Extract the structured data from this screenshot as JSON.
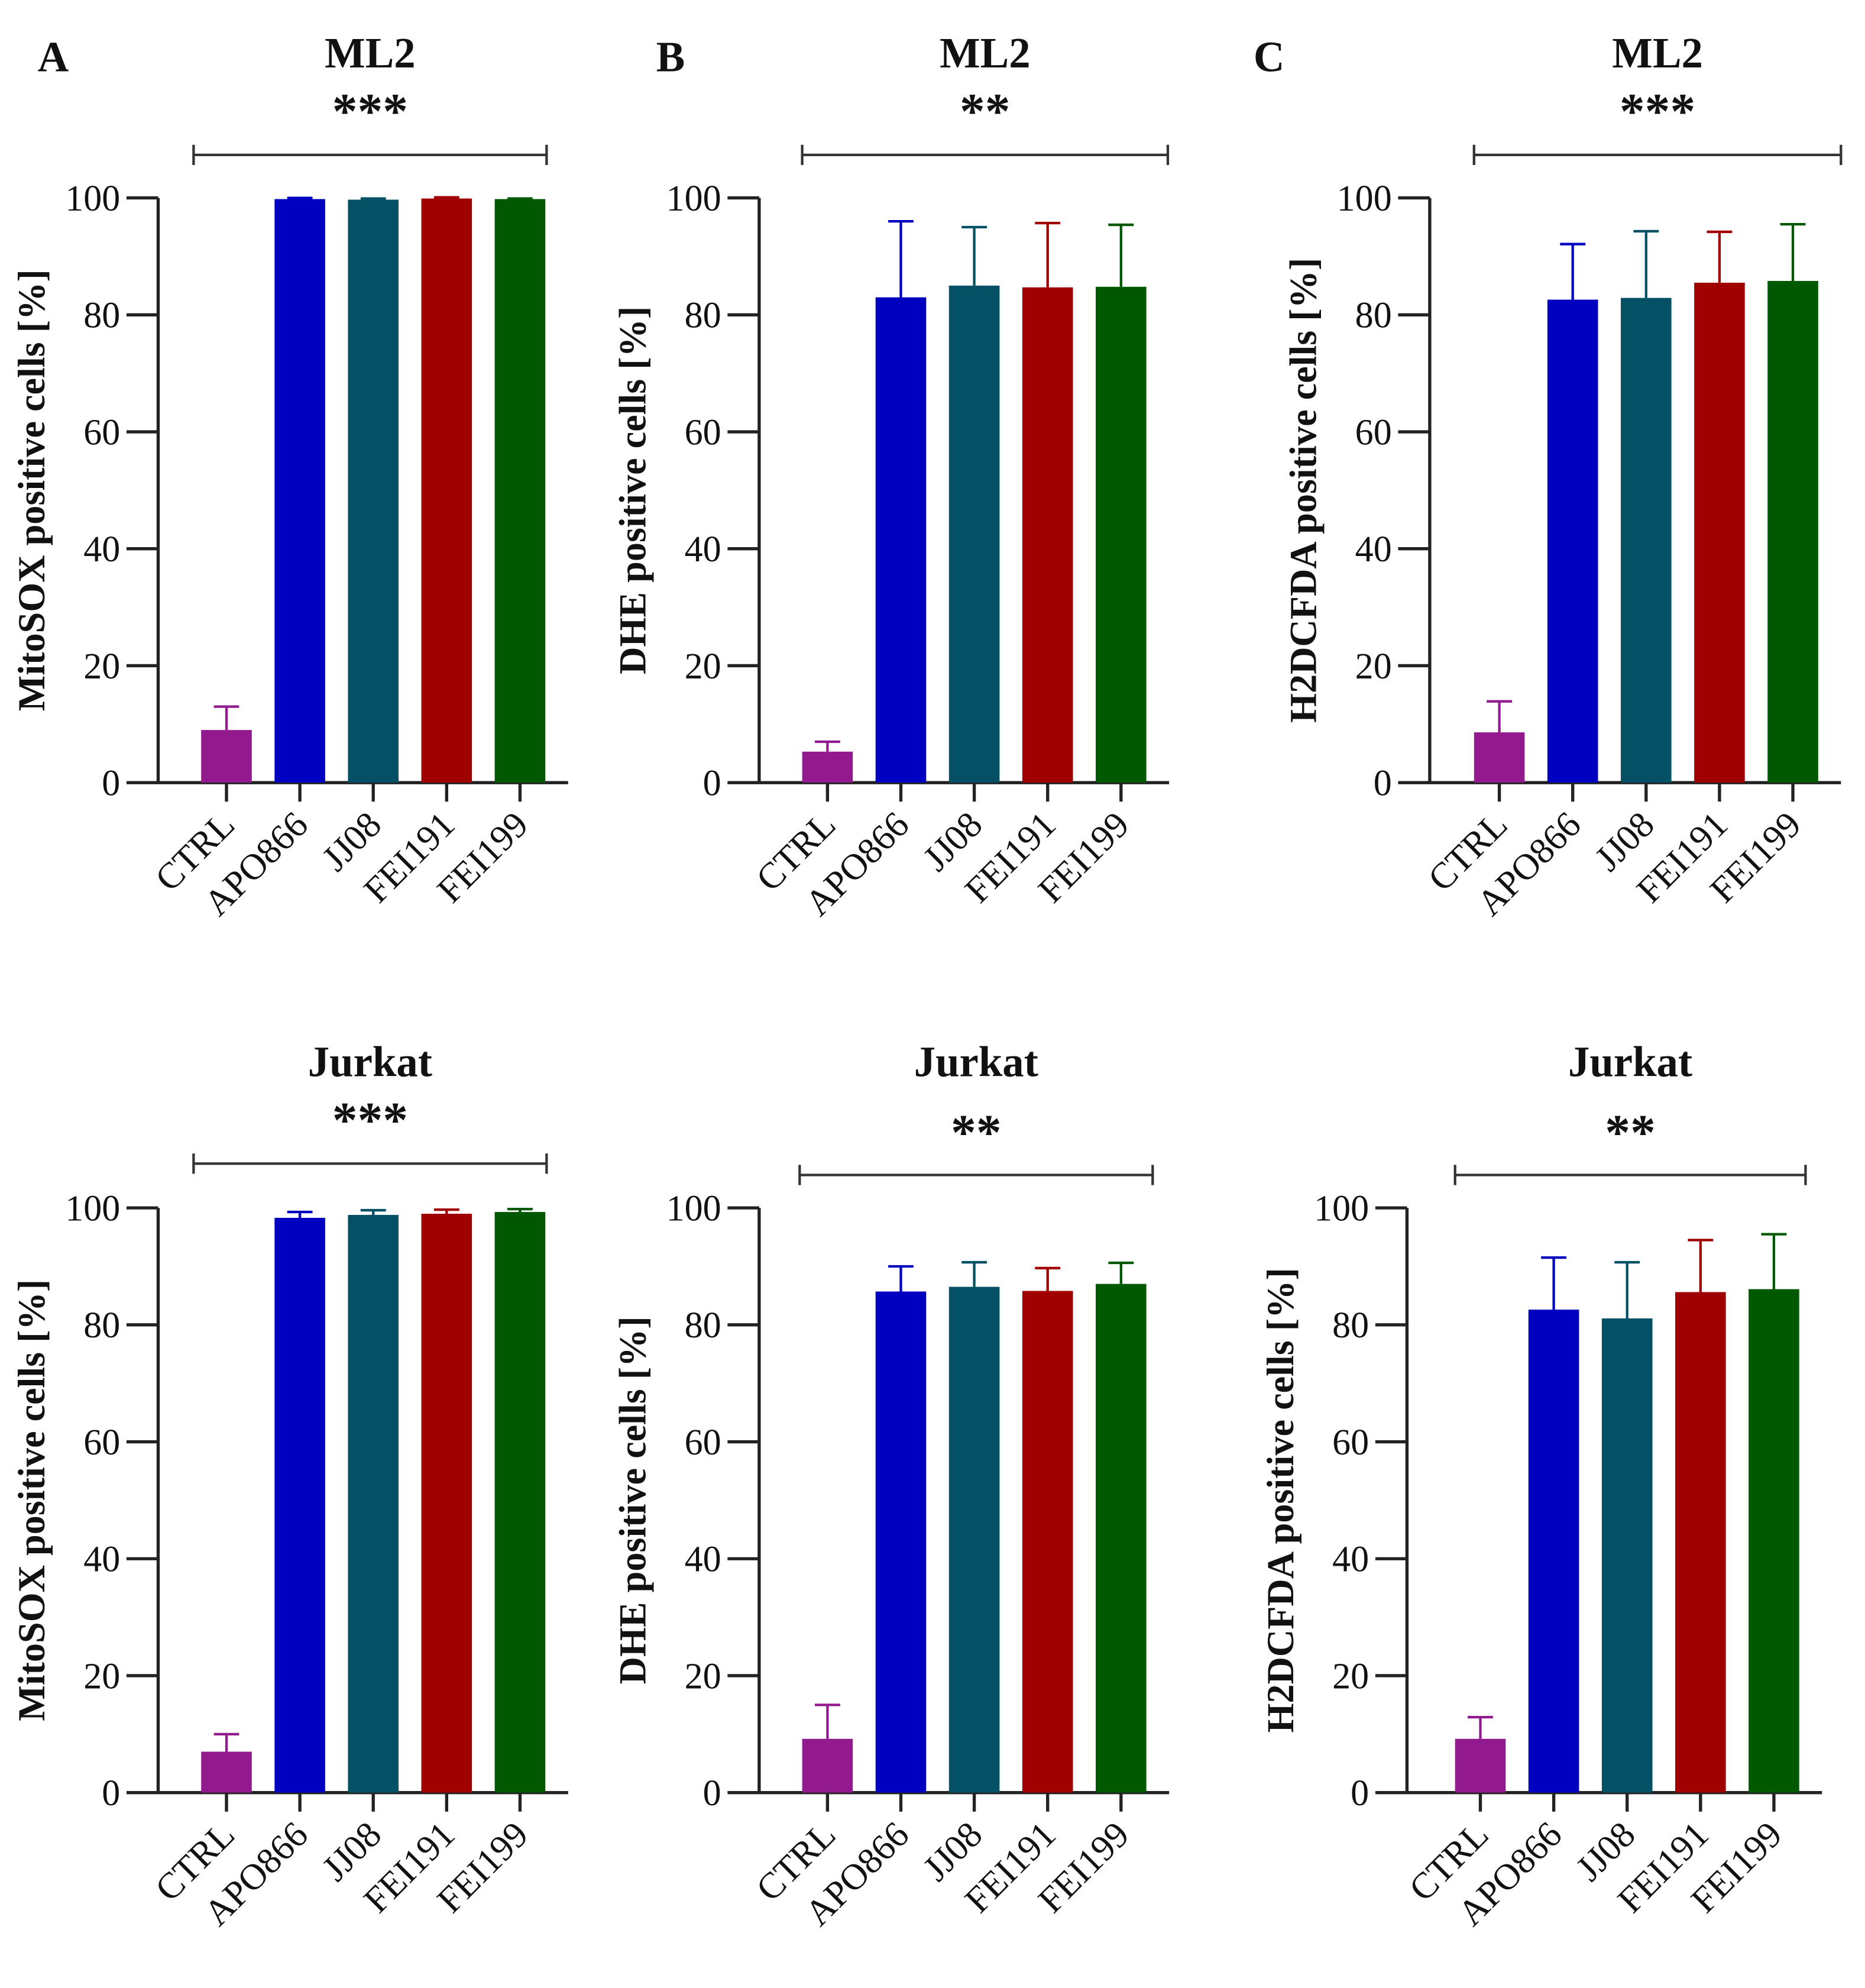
{
  "chart_data": [
    {
      "type": "bar",
      "panel": "A",
      "title": "ML2",
      "significance": "***",
      "ylabel": "MitoSOX positive cells [%]",
      "ylim": [
        0,
        100
      ],
      "yticks": [
        "0",
        "20",
        "40",
        "60",
        "80",
        "100"
      ],
      "categories": [
        "CTRL",
        "APO866",
        "JJ08",
        "FEI191",
        "FEI199"
      ],
      "values": [
        9,
        99.8,
        99.7,
        99.9,
        99.8
      ],
      "errors": [
        4,
        0.2,
        0.2,
        0.2,
        0.1
      ]
    },
    {
      "type": "bar",
      "panel": "B",
      "title": "ML2",
      "significance": "**",
      "ylabel": "DHE positive cells [%]",
      "ylim": [
        0,
        100
      ],
      "yticks": [
        "0",
        "20",
        "40",
        "60",
        "80",
        "100"
      ],
      "categories": [
        "CTRL",
        "APO866",
        "JJ08",
        "FEI191",
        "FEI199"
      ],
      "values": [
        5.3,
        83,
        85,
        84.7,
        84.8
      ],
      "errors": [
        1.7,
        13,
        10,
        11,
        10.6
      ]
    },
    {
      "type": "bar",
      "panel": "C",
      "title": "ML2",
      "significance": "***",
      "ylabel": "H2DCFDA positive cells [%]",
      "ylim": [
        0,
        100
      ],
      "yticks": [
        "0",
        "20",
        "40",
        "60",
        "80",
        "100"
      ],
      "categories": [
        "CTRL",
        "APO866",
        "JJ08",
        "FEI191",
        "FEI199"
      ],
      "values": [
        8.6,
        82.6,
        82.9,
        85.5,
        85.8
      ],
      "errors": [
        5.3,
        9.5,
        11.4,
        8.7,
        9.7
      ]
    },
    {
      "type": "bar",
      "panel": "",
      "title": "Jurkat",
      "significance": "***",
      "ylabel": "MitoSOX positive cells [%]",
      "ylim": [
        0,
        100
      ],
      "yticks": [
        "0",
        "20",
        "40",
        "60",
        "80",
        "100"
      ],
      "categories": [
        "CTRL",
        "APO866",
        "JJ08",
        "FEI191",
        "FEI199"
      ],
      "values": [
        7,
        98.3,
        98.8,
        99,
        99.3
      ],
      "errors": [
        3,
        1,
        0.8,
        0.7,
        0.5
      ]
    },
    {
      "type": "bar",
      "panel": "",
      "title": "Jurkat",
      "significance": "**",
      "ylabel": "DHE positive cells [%]",
      "ylim": [
        0,
        100
      ],
      "yticks": [
        "0",
        "20",
        "40",
        "60",
        "80",
        "100"
      ],
      "categories": [
        "CTRL",
        "APO866",
        "JJ08",
        "FEI191",
        "FEI199"
      ],
      "values": [
        9.2,
        85.7,
        86.5,
        85.8,
        87
      ],
      "errors": [
        5.8,
        4.3,
        4.2,
        3.9,
        3.6
      ]
    },
    {
      "type": "bar",
      "panel": "",
      "title": "Jurkat",
      "significance": "**",
      "ylabel": "H2DCFDA positive cells [%]",
      "ylim": [
        0,
        100
      ],
      "yticks": [
        "0",
        "20",
        "40",
        "60",
        "80",
        "100"
      ],
      "categories": [
        "CTRL",
        "APO866",
        "JJ08",
        "FEI191",
        "FEI199"
      ],
      "values": [
        9.2,
        82.6,
        81.1,
        85.6,
        86.1
      ],
      "errors": [
        3.7,
        8.9,
        9.6,
        8.9,
        9.4
      ]
    }
  ],
  "colors": [
    "#931A8E",
    "#0000C0",
    "#045064",
    "#A00000",
    "#005800"
  ]
}
